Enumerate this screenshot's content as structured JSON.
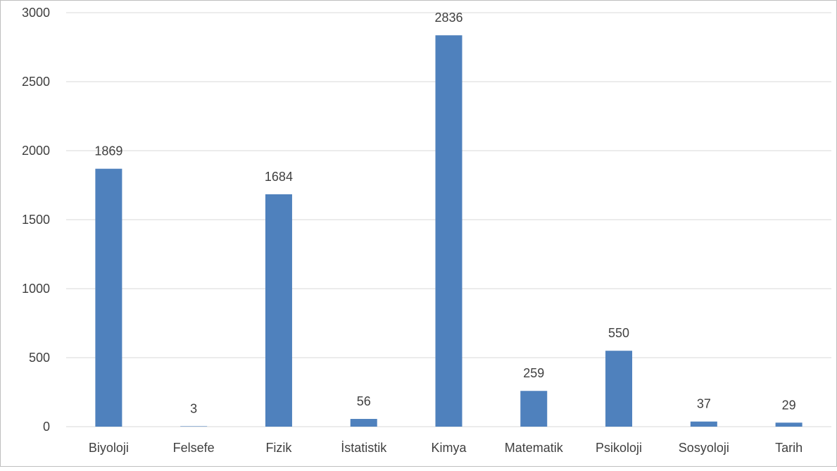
{
  "chart_data": {
    "type": "bar",
    "title": "",
    "xlabel": "",
    "ylabel": "",
    "categories": [
      "Biyoloji",
      "Felsefe",
      "Fizik",
      "İstatistik",
      "Kimya",
      "Matematik",
      "Psikoloji",
      "Sosyoloji",
      "Tarih"
    ],
    "values": [
      1869,
      3,
      1684,
      56,
      2836,
      259,
      550,
      37,
      29
    ],
    "ylim": [
      0,
      3000
    ],
    "yticks": [
      0,
      500,
      1000,
      1500,
      2000,
      2500,
      3000
    ],
    "grid": true,
    "legend": "none",
    "data_labels": true,
    "bar_color": "#4f81bd",
    "grid_color": "#d9d9d9",
    "label_color": "#404040"
  }
}
